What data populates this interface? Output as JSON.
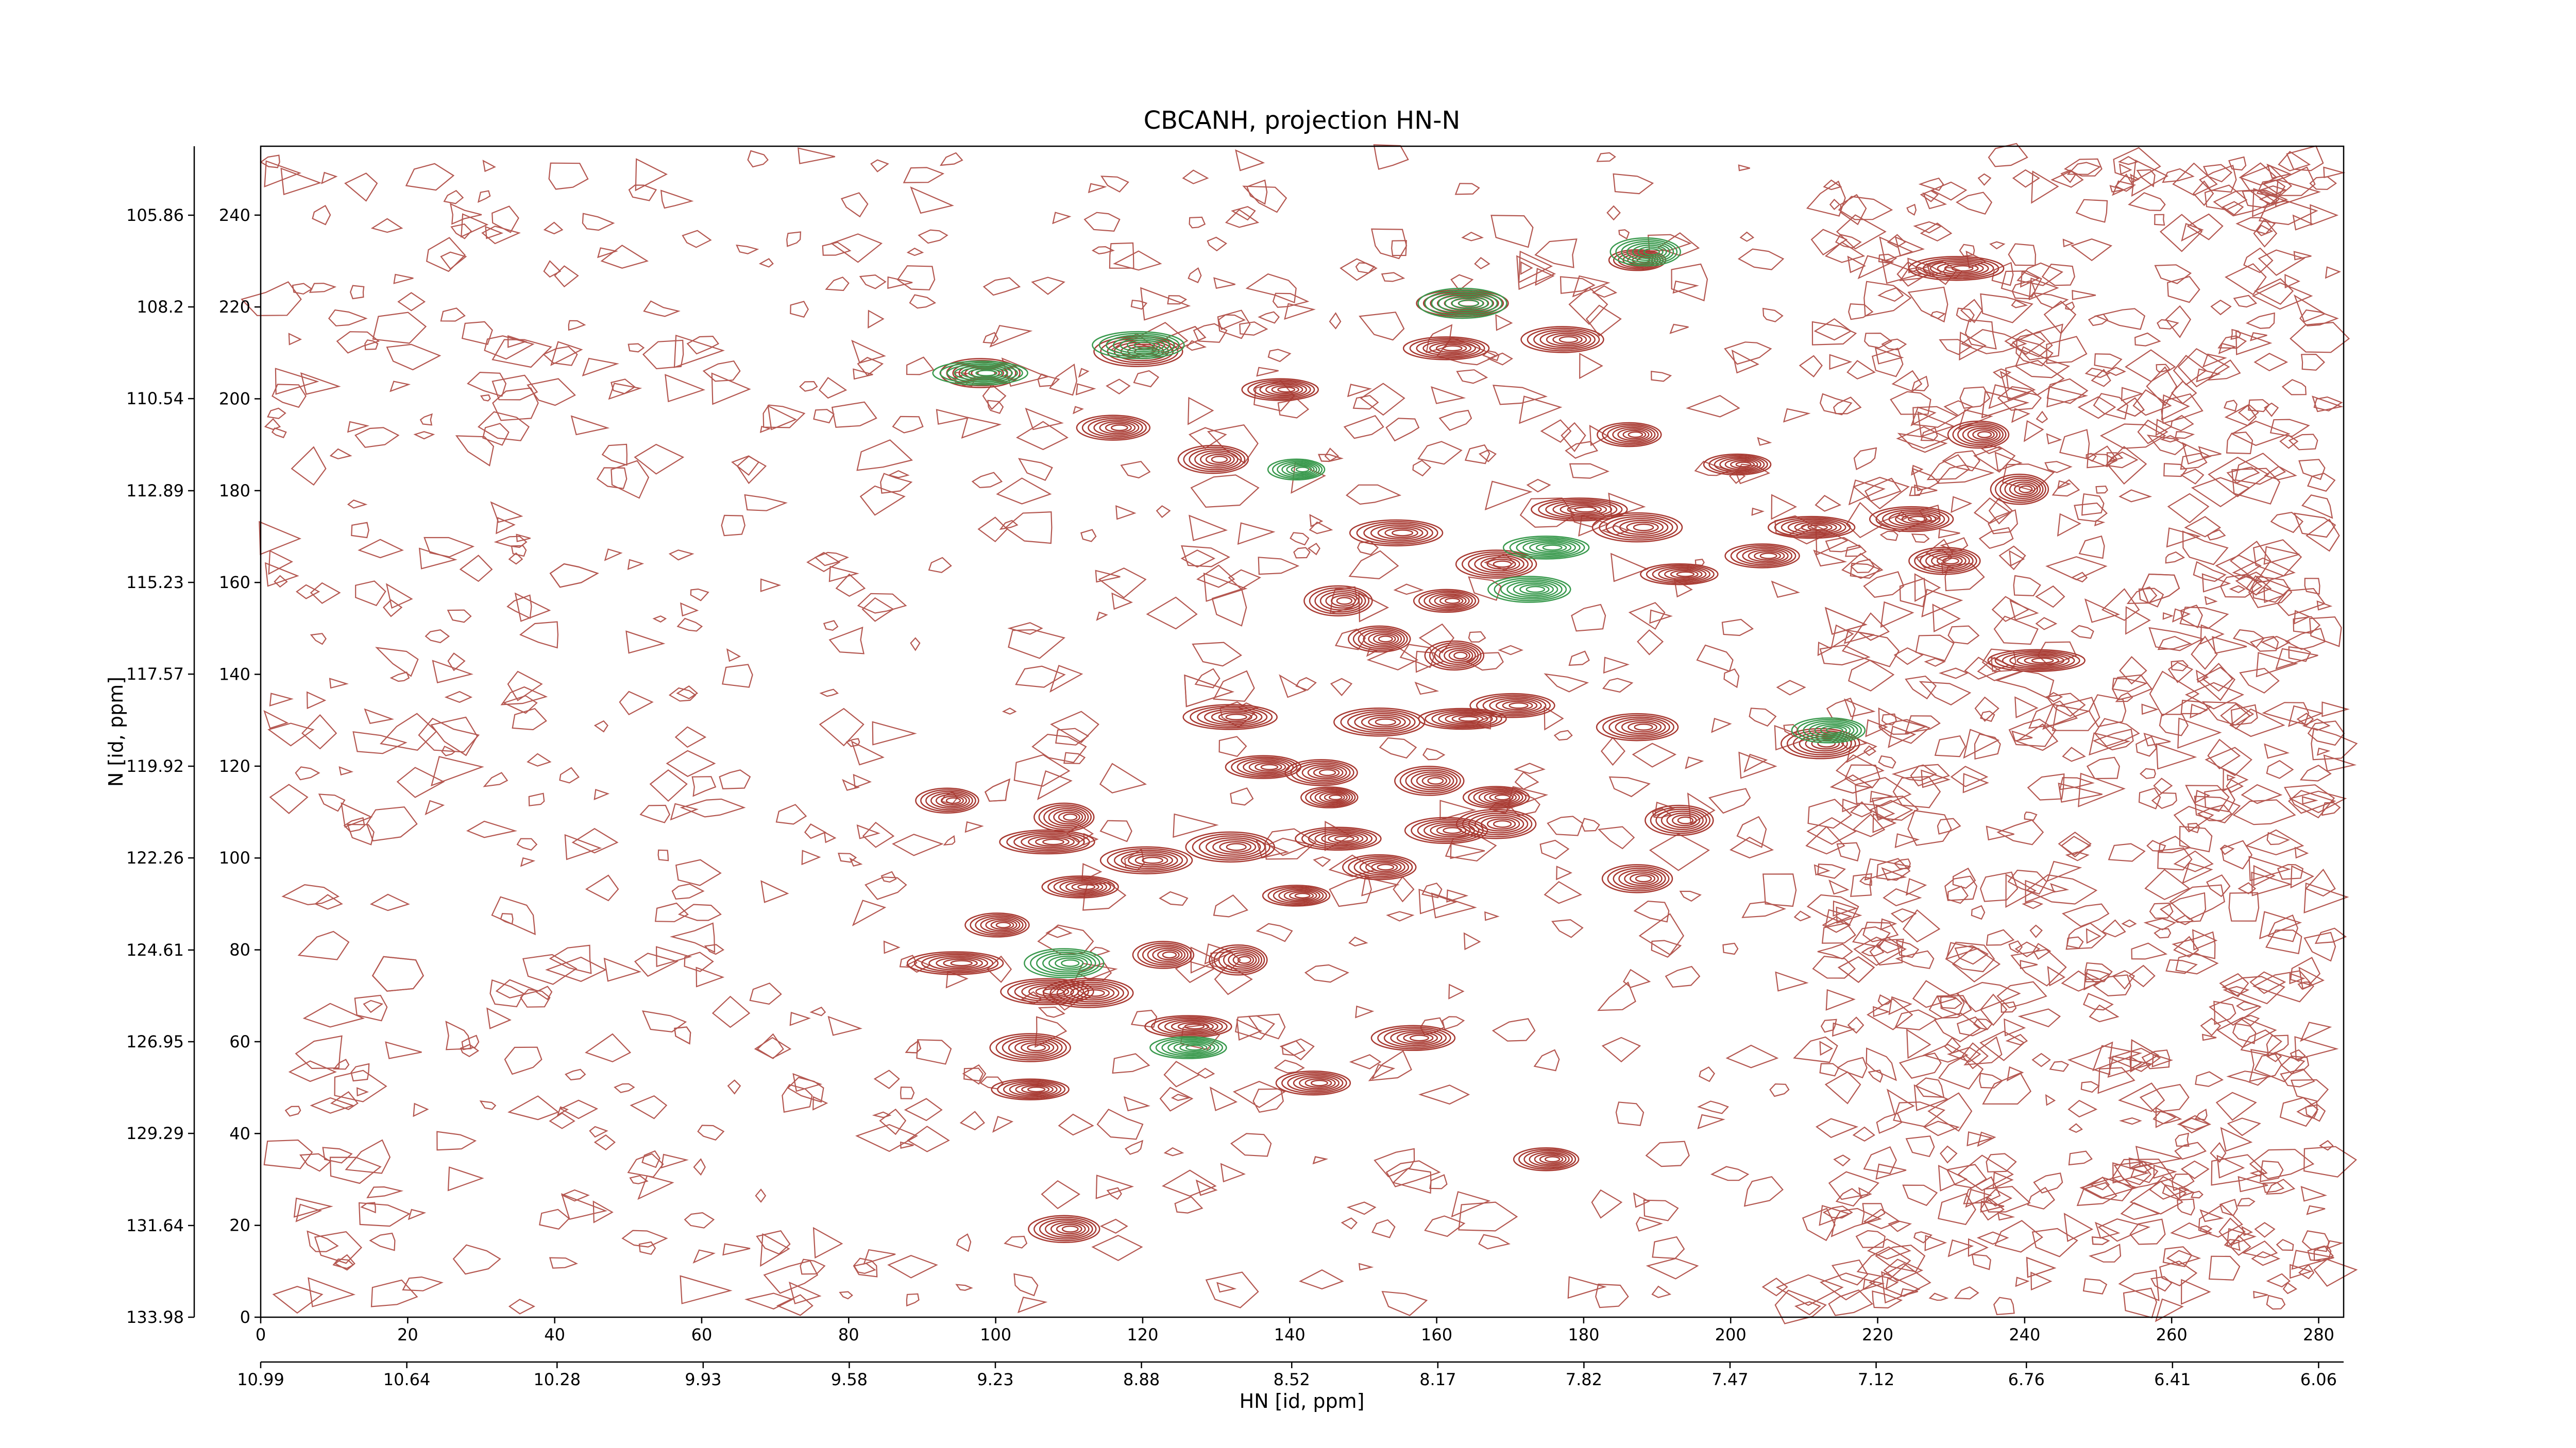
{
  "chart_data": {
    "type": "contour",
    "title": "CBCANH, projection HN-N",
    "xlabel": "HN [id, ppm]",
    "ylabel": "N [id, ppm]",
    "xlim": [
      0,
      283.4
    ],
    "ylim": [
      0,
      255
    ],
    "xticks": [
      0,
      20,
      40,
      60,
      80,
      100,
      120,
      140,
      160,
      180,
      200,
      220,
      240,
      260,
      280
    ],
    "yticks": [
      0,
      20,
      40,
      60,
      80,
      100,
      120,
      140,
      160,
      180,
      200,
      220,
      240
    ],
    "x2lim": [
      10.99,
      6.0
    ],
    "x2ticks": [
      10.99,
      10.64,
      10.28,
      9.93,
      9.58,
      9.23,
      8.88,
      8.52,
      8.17,
      7.82,
      7.47,
      7.12,
      6.76,
      6.41,
      6.06
    ],
    "y2lim": [
      133.98,
      104.1
    ],
    "y2ticks": [
      133.98,
      131.64,
      129.29,
      126.95,
      124.61,
      122.26,
      119.92,
      117.57,
      115.23,
      112.89,
      110.54,
      108.2,
      105.86
    ],
    "series": [
      {
        "color": "#a83a32",
        "x": [
          187.3,
          230.7,
          163.5,
          119.4,
          161.3,
          177.1,
          97.9,
          138.7,
          116.0,
          129.6,
          200.9,
          186.2,
          233.7,
          239.3,
          179.4,
          154.5,
          187.3,
          211.0,
          224.6,
          168.1,
          193.0,
          204.3,
          229.1,
          146.6,
          161.3,
          152.2,
          162.4,
          241.6,
          131.9,
          152.2,
          163.5,
          170.3,
          187.3,
          212.2,
          136.4,
          144.3,
          159.0,
          168.1,
          93.4,
          109.3,
          145.4,
          107.0,
          120.5,
          131.9,
          146.6,
          161.3,
          168.1,
          111.5,
          152.2,
          187.3,
          140.9,
          100.2,
          122.8,
          133.0,
          94.5,
          107.0,
          112.6,
          126.2,
          156.8,
          104.7,
          104.7,
          143.2,
          109.3,
          193.0,
          174.9
        ],
        "y": [
          230.2,
          228.4,
          220.8,
          210.3,
          211.0,
          212.9,
          205.6,
          202.0,
          193.7,
          186.8,
          185.7,
          192.2,
          192.2,
          180.3,
          175.9,
          170.8,
          172.0,
          172.0,
          173.8,
          164.0,
          161.8,
          165.8,
          164.7,
          156.0,
          156.0,
          147.7,
          144.1,
          143.0,
          130.7,
          129.6,
          130.3,
          133.2,
          128.5,
          124.9,
          119.8,
          118.6,
          116.8,
          113.2,
          112.5,
          108.9,
          113.2,
          103.5,
          99.5,
          102.4,
          104.2,
          106.0,
          107.4,
          93.7,
          98.0,
          95.5,
          91.8,
          85.4,
          78.9,
          77.8,
          77.1,
          70.9,
          70.6,
          63.3,
          60.8,
          58.7,
          49.6,
          51.0,
          19.2,
          108.2,
          34.4
        ]
      },
      {
        "color": "#3a9a4e",
        "x": [
          140.9,
          97.9,
          119.4,
          163.5,
          174.9,
          172.6,
          109.3,
          126.2,
          213.3,
          188.4
        ],
        "y": [
          184.6,
          205.6,
          211.7,
          220.8,
          167.6,
          158.5,
          77.1,
          58.7,
          127.8,
          232.0
        ]
      }
    ]
  }
}
